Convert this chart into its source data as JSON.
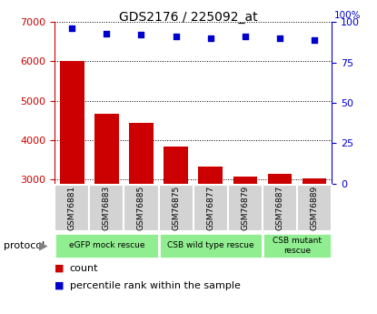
{
  "title": "GDS2176 / 225092_at",
  "samples": [
    "GSM76881",
    "GSM76883",
    "GSM76885",
    "GSM76875",
    "GSM76877",
    "GSM76879",
    "GSM76887",
    "GSM76889"
  ],
  "counts": [
    6020,
    4680,
    4450,
    3850,
    3340,
    3080,
    3160,
    3040
  ],
  "percentile_ranks": [
    96,
    93,
    92,
    91,
    90,
    91,
    90,
    89
  ],
  "ylim_left": [
    2900,
    7000
  ],
  "ylim_right": [
    0,
    100
  ],
  "yticks_left": [
    3000,
    4000,
    5000,
    6000,
    7000
  ],
  "yticks_right": [
    0,
    25,
    50,
    75,
    100
  ],
  "bar_color": "#cc0000",
  "dot_color": "#0000cc",
  "sample_box_color": "#d3d3d3",
  "protocol_groups": [
    {
      "label": "eGFP mock rescue",
      "start": 0,
      "end": 3
    },
    {
      "label": "CSB wild type rescue",
      "start": 3,
      "end": 6
    },
    {
      "label": "CSB mutant\nrescue",
      "start": 6,
      "end": 8
    }
  ],
  "group_colors": [
    "#90ee90",
    "#90ee90",
    "#90ee90"
  ],
  "protocol_label": "protocol",
  "legend_count_label": "count",
  "legend_pct_label": "percentile rank within the sample",
  "tick_color_left": "#cc0000",
  "tick_color_right": "#0000cc"
}
